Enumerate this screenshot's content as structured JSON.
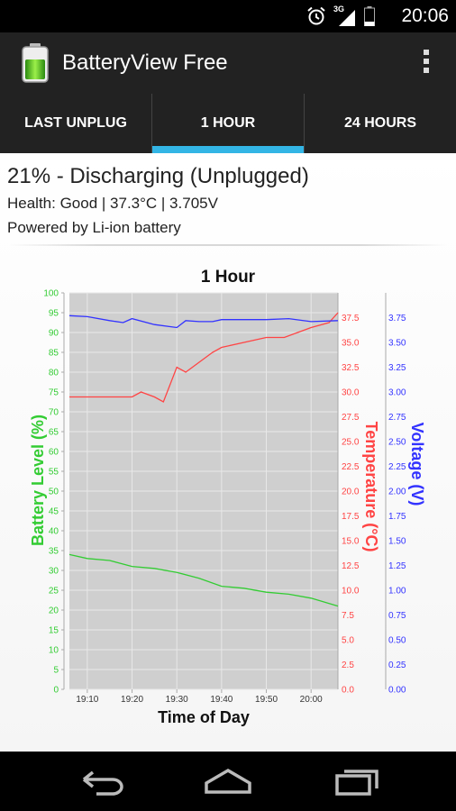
{
  "status_bar": {
    "time": "20:06",
    "network_label": "3G"
  },
  "app": {
    "title": "BatteryView Free"
  },
  "tabs": [
    {
      "label": "LAST UNPLUG",
      "active": false
    },
    {
      "label": "1 HOUR",
      "active": true
    },
    {
      "label": "24 HOURS",
      "active": false
    }
  ],
  "battery_status": {
    "headline": "21% - Discharging (Unplugged)",
    "health_line": "Health: Good | 37.3°C | 3.705V",
    "power_line": "Powered by Li-ion battery"
  },
  "colors": {
    "accent": "#33b5e5",
    "battery_series": "#33cc33",
    "temperature_series": "#ff4444",
    "voltage_series": "#3333ff"
  },
  "chart_data": {
    "type": "line",
    "title": "1 Hour",
    "xlabel": "Time of Day",
    "x_ticks": [
      "19:10",
      "19:20",
      "19:30",
      "19:40",
      "19:50",
      "20:00"
    ],
    "x_range": [
      "19:06",
      "20:06"
    ],
    "grid": true,
    "y_axes": [
      {
        "id": "battery",
        "label": "Battery Level (%)",
        "range": [
          0,
          100
        ],
        "ticks": [
          "0",
          "5",
          "10",
          "15",
          "20",
          "25",
          "30",
          "35",
          "40",
          "45",
          "50",
          "55",
          "60",
          "65",
          "70",
          "75",
          "80",
          "85",
          "90",
          "95",
          "100"
        ]
      },
      {
        "id": "temperature",
        "label": "Temperature (°C)",
        "range": [
          0,
          40
        ],
        "ticks": [
          "0.0",
          "2.5",
          "5.0",
          "7.5",
          "10.0",
          "12.5",
          "15.0",
          "17.5",
          "20.0",
          "22.5",
          "25.0",
          "27.5",
          "30.0",
          "32.5",
          "35.0",
          "37.5"
        ]
      },
      {
        "id": "voltage",
        "label": "Voltage (V)",
        "range": [
          0,
          4
        ],
        "ticks": [
          "0.00",
          "0.25",
          "0.50",
          "0.75",
          "1.00",
          "1.25",
          "1.50",
          "1.75",
          "2.00",
          "2.25",
          "2.50",
          "2.75",
          "3.00",
          "3.25",
          "3.50",
          "3.75"
        ]
      }
    ],
    "series": [
      {
        "name": "Battery Level (%)",
        "axis": "battery",
        "x": [
          "19:06",
          "19:10",
          "19:15",
          "19:20",
          "19:25",
          "19:30",
          "19:35",
          "19:40",
          "19:45",
          "19:50",
          "19:55",
          "20:00",
          "20:06"
        ],
        "values": [
          34,
          33,
          32.5,
          31,
          30.5,
          29.5,
          28,
          26,
          25.5,
          24.5,
          24,
          23,
          21
        ]
      },
      {
        "name": "Temperature (°C)",
        "axis": "temperature",
        "x": [
          "19:06",
          "19:10",
          "19:15",
          "19:20",
          "19:22",
          "19:25",
          "19:27",
          "19:30",
          "19:32",
          "19:35",
          "19:38",
          "19:40",
          "19:45",
          "19:50",
          "19:54",
          "20:00",
          "20:04",
          "20:06"
        ],
        "values": [
          29.5,
          29.5,
          29.5,
          29.5,
          30,
          29.5,
          29,
          32.5,
          32,
          33,
          34,
          34.5,
          35,
          35.5,
          35.5,
          36.5,
          37,
          38
        ]
      },
      {
        "name": "Voltage (V)",
        "axis": "voltage",
        "x": [
          "19:06",
          "19:10",
          "19:15",
          "19:18",
          "19:20",
          "19:25",
          "19:30",
          "19:32",
          "19:35",
          "19:38",
          "19:40",
          "19:50",
          "19:55",
          "20:00",
          "20:06"
        ],
        "values": [
          3.77,
          3.76,
          3.72,
          3.7,
          3.74,
          3.68,
          3.65,
          3.72,
          3.71,
          3.71,
          3.73,
          3.73,
          3.74,
          3.71,
          3.72
        ]
      }
    ]
  }
}
